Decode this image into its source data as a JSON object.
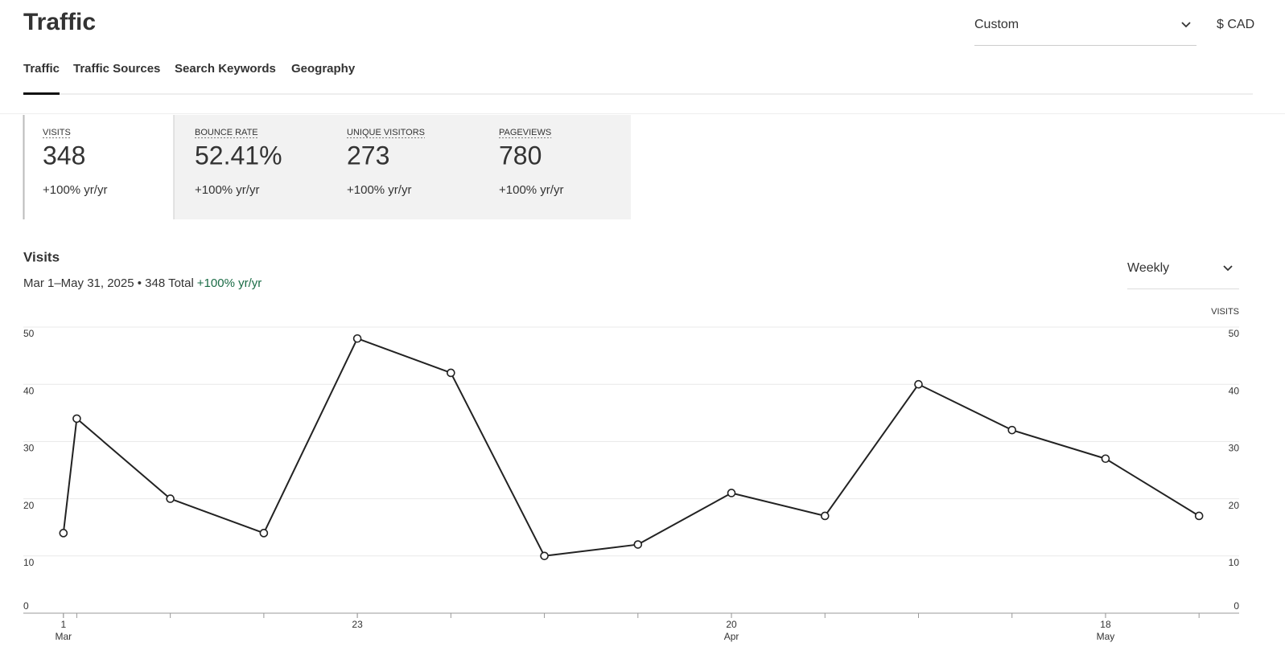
{
  "header": {
    "title": "Traffic",
    "date_range": "Custom",
    "currency": "$ CAD"
  },
  "tabs": [
    "Traffic",
    "Traffic Sources",
    "Search Keywords",
    "Geography"
  ],
  "metrics": [
    {
      "label": "VISITS",
      "value": "348",
      "change": "+100% yr/yr"
    },
    {
      "label": "BOUNCE RATE",
      "value": "52.41%",
      "change": "+100% yr/yr"
    },
    {
      "label": "UNIQUE VISITORS",
      "value": "273",
      "change": "+100% yr/yr"
    },
    {
      "label": "PAGEVIEWS",
      "value": "780",
      "change": "+100% yr/yr"
    }
  ],
  "chart_data": {
    "type": "line",
    "title": "Visits",
    "subtitle": "Mar 1–May 31, 2025 • 348 Total",
    "subtitle_change": "+100% yr/yr",
    "interval": "Weekly",
    "y2_label": "VISITS",
    "x": [
      "2025-03-01",
      "2025-03-02",
      "2025-03-09",
      "2025-03-16",
      "2025-03-23",
      "2025-03-30",
      "2025-04-06",
      "2025-04-13",
      "2025-04-20",
      "2025-04-27",
      "2025-05-04",
      "2025-05-11",
      "2025-05-18",
      "2025-05-25"
    ],
    "values": [
      14,
      34,
      20,
      14,
      48,
      42,
      10,
      12,
      21,
      17,
      40,
      32,
      27,
      17
    ],
    "color": "#222222",
    "xlim": [
      "2025-02-26",
      "2025-05-28"
    ],
    "xticks": [
      {
        "value": "2025-03-01",
        "label": "1",
        "month": "Mar"
      },
      {
        "value": "2025-03-23",
        "label": "23"
      },
      {
        "value": "2025-04-20",
        "label": "20",
        "month": "Apr"
      },
      {
        "value": "2025-05-18",
        "label": "18",
        "month": "May"
      }
    ],
    "ylim": [
      0,
      50
    ],
    "yticks": [
      0,
      10,
      20,
      30,
      40,
      50
    ],
    "y2lim": [
      0,
      50
    ],
    "y2ticks": [
      0,
      10,
      20,
      30,
      40,
      50
    ],
    "grid": true
  }
}
